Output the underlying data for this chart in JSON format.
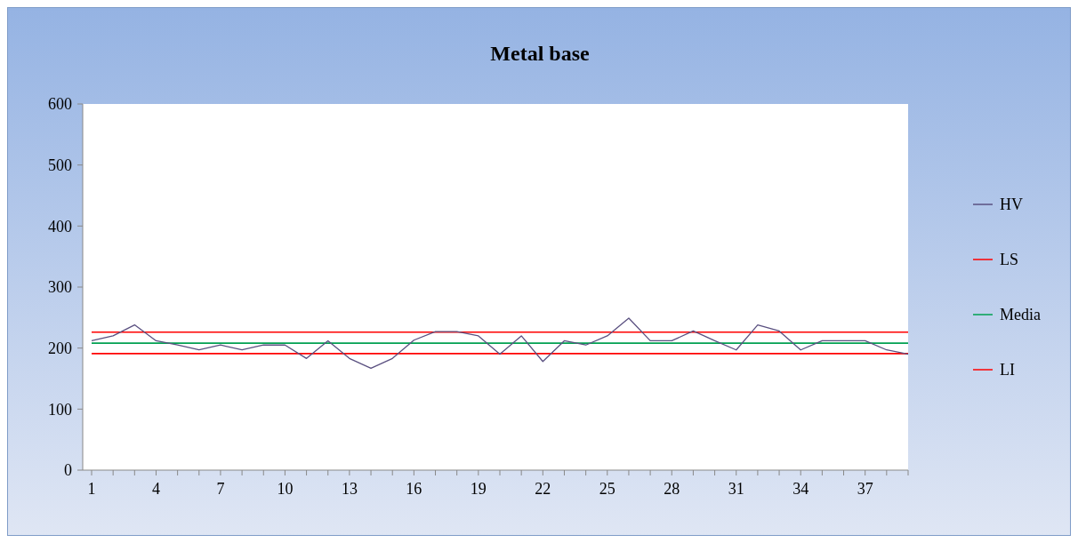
{
  "chart_data": {
    "type": "line",
    "title": "Metal base",
    "categories": [
      "1",
      null,
      null,
      "4",
      null,
      null,
      "7",
      null,
      null,
      "10",
      null,
      null,
      "13",
      null,
      null,
      "16",
      null,
      null,
      "19",
      null,
      null,
      "22",
      null,
      null,
      "25",
      null,
      null,
      "28",
      null,
      null,
      "31",
      null,
      null,
      "34",
      null,
      null,
      "37",
      null,
      null
    ],
    "series": [
      {
        "name": "HV",
        "color": "#5a5080",
        "values": [
          212,
          220,
          238,
          212,
          205,
          197,
          205,
          197,
          205,
          205,
          183,
          212,
          183,
          167,
          183,
          213,
          227,
          227,
          220,
          190,
          220,
          178,
          212,
          205,
          220,
          249,
          212,
          212,
          228,
          212,
          197,
          238,
          228,
          197,
          212,
          212,
          212,
          197,
          190
        ]
      },
      {
        "name": "LS",
        "color": "#ff0000",
        "values": [
          226,
          226,
          226,
          226,
          226,
          226,
          226,
          226,
          226,
          226,
          226,
          226,
          226,
          226,
          226,
          226,
          226,
          226,
          226,
          226,
          226,
          226,
          226,
          226,
          226,
          226,
          226,
          226,
          226,
          226,
          226,
          226,
          226,
          226,
          226,
          226,
          226,
          226,
          226
        ]
      },
      {
        "name": "Media",
        "color": "#00a050",
        "values": [
          208,
          208,
          208,
          208,
          208,
          208,
          208,
          208,
          208,
          208,
          208,
          208,
          208,
          208,
          208,
          208,
          208,
          208,
          208,
          208,
          208,
          208,
          208,
          208,
          208,
          208,
          208,
          208,
          208,
          208,
          208,
          208,
          208,
          208,
          208,
          208,
          208,
          208,
          208
        ]
      },
      {
        "name": "LI",
        "color": "#ff0000",
        "values": [
          191,
          191,
          191,
          191,
          191,
          191,
          191,
          191,
          191,
          191,
          191,
          191,
          191,
          191,
          191,
          191,
          191,
          191,
          191,
          191,
          191,
          191,
          191,
          191,
          191,
          191,
          191,
          191,
          191,
          191,
          191,
          191,
          191,
          191,
          191,
          191,
          191,
          191,
          191
        ]
      }
    ],
    "ylim": [
      0,
      600
    ],
    "yticks": [
      0,
      100,
      200,
      300,
      400,
      500,
      600
    ],
    "grid": false,
    "legend": "right",
    "marker": "none",
    "line_style": "solid"
  }
}
